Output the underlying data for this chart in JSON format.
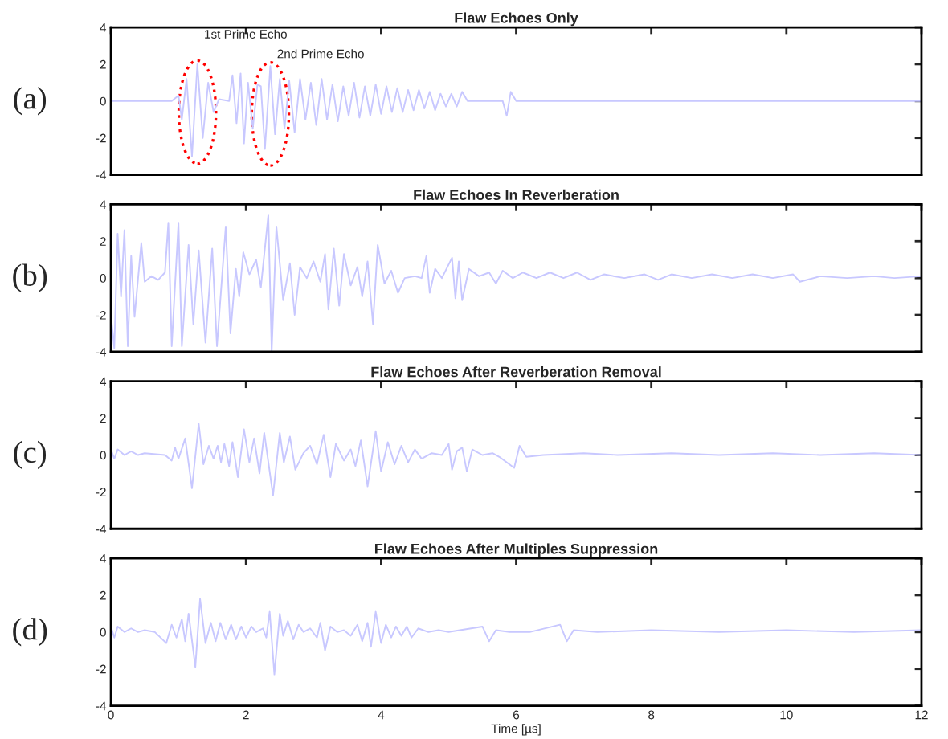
{
  "chart_data": [
    {
      "type": "line",
      "title": "Flaw Echoes Only",
      "annotations": [
        "(a)",
        {
          "text": "1st Prime Echo",
          "x": 1.28,
          "y": 2.0
        },
        {
          "text": "2nd Prime Echo",
          "x": 2.36,
          "y": 1.9
        }
      ],
      "xlim": [
        0,
        12
      ],
      "xticks": [
        0,
        2,
        4,
        6,
        8,
        10,
        12
      ],
      "ylim": [
        -4,
        4
      ],
      "yticks": [
        -4,
        -2,
        0,
        2,
        4
      ],
      "tick_labels": "y",
      "grid": false,
      "legend": false,
      "x": [
        0,
        0.9,
        1.0,
        1.05,
        1.12,
        1.2,
        1.28,
        1.36,
        1.44,
        1.52,
        1.6,
        1.75,
        1.8,
        1.86,
        1.92,
        1.97,
        2.03,
        2.1,
        2.17,
        2.22,
        2.28,
        2.36,
        2.43,
        2.5,
        2.57,
        2.64,
        2.72,
        2.8,
        2.88,
        2.96,
        3.04,
        3.12,
        3.2,
        3.28,
        3.36,
        3.44,
        3.52,
        3.6,
        3.68,
        3.76,
        3.84,
        3.92,
        4.0,
        4.08,
        4.16,
        4.24,
        4.32,
        4.4,
        4.48,
        4.56,
        4.64,
        4.72,
        4.8,
        4.88,
        4.96,
        5.04,
        5.12,
        5.2,
        5.28,
        5.8,
        5.86,
        5.92,
        6.0,
        12
      ],
      "series": [
        {
          "color": "#c8c8ff",
          "values": [
            0,
            0,
            0.3,
            -1.0,
            1.2,
            -3.0,
            2.0,
            -2.0,
            1.0,
            -0.6,
            0.1,
            0.0,
            1.4,
            -1.2,
            1.5,
            -2.3,
            1.0,
            -1.5,
            0.9,
            0.8,
            -2.6,
            1.9,
            -1.8,
            1.2,
            -1.5,
            1.1,
            -1.7,
            1.2,
            -1.0,
            1.0,
            -1.3,
            1.2,
            -1.0,
            0.9,
            -1.1,
            0.8,
            -0.8,
            1.0,
            -0.9,
            0.8,
            -0.8,
            0.9,
            -0.7,
            0.8,
            -0.6,
            0.7,
            -0.6,
            0.6,
            -0.5,
            0.6,
            -0.4,
            0.5,
            -0.5,
            0.4,
            -0.3,
            0.4,
            -0.3,
            0.5,
            0.0,
            0.0,
            -0.8,
            0.5,
            0.0,
            0
          ]
        }
      ]
    },
    {
      "type": "line",
      "title": "Flaw Echoes In Reverberation",
      "annotations": [
        "(b)"
      ],
      "xlim": [
        0,
        12
      ],
      "xticks": [
        0,
        2,
        4,
        6,
        8,
        10,
        12
      ],
      "ylim": [
        -4,
        4
      ],
      "yticks": [
        -4,
        -2,
        0,
        2,
        4
      ],
      "tick_labels": "y",
      "grid": false,
      "legend": false,
      "x": [
        0,
        0.05,
        0.1,
        0.15,
        0.2,
        0.25,
        0.3,
        0.35,
        0.45,
        0.5,
        0.6,
        0.7,
        0.8,
        0.85,
        0.9,
        1.0,
        1.05,
        1.15,
        1.22,
        1.3,
        1.4,
        1.5,
        1.57,
        1.7,
        1.77,
        1.85,
        1.9,
        1.96,
        2.05,
        2.15,
        2.22,
        2.33,
        2.38,
        2.45,
        2.55,
        2.65,
        2.72,
        2.8,
        2.9,
        3.0,
        3.1,
        3.17,
        3.22,
        3.3,
        3.38,
        3.45,
        3.55,
        3.65,
        3.72,
        3.8,
        3.88,
        3.95,
        4.05,
        4.15,
        4.25,
        4.35,
        4.5,
        4.6,
        4.67,
        4.72,
        4.8,
        4.9,
        5.05,
        5.1,
        5.15,
        5.2,
        5.3,
        5.45,
        5.6,
        5.7,
        5.8,
        5.95,
        6.1,
        6.3,
        6.5,
        6.7,
        6.9,
        7.1,
        7.3,
        7.6,
        7.9,
        8.1,
        8.3,
        8.6,
        8.9,
        9.2,
        9.5,
        9.8,
        10.1,
        10.2,
        10.5,
        10.9,
        11.3,
        11.6,
        12
      ],
      "series": [
        {
          "color": "#c8c8ff",
          "values": [
            -2.0,
            -3.8,
            2.4,
            -1.0,
            2.6,
            -3.7,
            1.2,
            -2.1,
            1.9,
            -0.2,
            0.1,
            -0.1,
            0.3,
            3.0,
            -3.7,
            3.0,
            -3.7,
            1.8,
            -2.5,
            1.5,
            -3.5,
            1.6,
            -3.7,
            2.8,
            -3.0,
            0.5,
            -1.0,
            1.4,
            0.2,
            1.0,
            -0.5,
            3.4,
            -4.0,
            2.8,
            -1.2,
            0.8,
            -2.0,
            0.6,
            0.0,
            0.9,
            -0.2,
            1.3,
            -1.7,
            1.6,
            -1.5,
            1.3,
            -0.4,
            0.6,
            -1.0,
            0.9,
            -2.5,
            1.8,
            -0.3,
            0.4,
            -0.8,
            0.0,
            0.1,
            0.0,
            1.2,
            -0.8,
            0.5,
            0.0,
            1.1,
            -1.1,
            0.9,
            -1.2,
            0.5,
            0.1,
            0.3,
            -0.3,
            0.4,
            0.0,
            0.3,
            0.0,
            0.3,
            0.0,
            0.3,
            -0.1,
            0.2,
            0.0,
            0.2,
            -0.1,
            0.2,
            0.0,
            0.2,
            0.0,
            0.2,
            0.0,
            0.2,
            -0.2,
            0.1,
            0.0,
            0.1,
            0.0,
            0.1
          ]
        }
      ]
    },
    {
      "type": "line",
      "title": "Flaw Echoes After Reverberation Removal",
      "annotations": [
        "(c)"
      ],
      "xlim": [
        0,
        12
      ],
      "xticks": [
        0,
        2,
        4,
        6,
        8,
        10,
        12
      ],
      "ylim": [
        -4,
        4
      ],
      "yticks": [
        -4,
        -2,
        0,
        2,
        4
      ],
      "tick_labels": "y",
      "grid": false,
      "legend": false,
      "x": [
        0,
        0.05,
        0.1,
        0.2,
        0.3,
        0.4,
        0.5,
        0.8,
        0.9,
        0.95,
        1.0,
        1.1,
        1.2,
        1.3,
        1.37,
        1.45,
        1.52,
        1.58,
        1.63,
        1.68,
        1.75,
        1.8,
        1.88,
        1.97,
        2.05,
        2.12,
        2.2,
        2.27,
        2.4,
        2.5,
        2.56,
        2.65,
        2.73,
        2.85,
        2.95,
        3.05,
        3.15,
        3.25,
        3.33,
        3.45,
        3.55,
        3.62,
        3.7,
        3.8,
        3.92,
        4.0,
        4.1,
        4.2,
        4.3,
        4.4,
        4.5,
        4.6,
        4.75,
        4.9,
        5.0,
        5.05,
        5.12,
        5.2,
        5.27,
        5.35,
        5.5,
        5.65,
        5.75,
        5.97,
        6.05,
        6.15,
        6.4,
        7.0,
        7.5,
        8.3,
        9.0,
        9.8,
        10.5,
        11.3,
        12
      ],
      "series": [
        {
          "color": "#c8c8ff",
          "values": [
            0.3,
            -0.2,
            0.3,
            0.0,
            0.2,
            0.0,
            0.1,
            0.0,
            -0.3,
            0.4,
            -0.2,
            0.9,
            -1.8,
            1.7,
            -0.5,
            0.5,
            -0.2,
            0.5,
            -0.4,
            0.6,
            -0.6,
            0.7,
            -1.2,
            1.4,
            -0.4,
            0.9,
            -1.0,
            1.2,
            -2.2,
            1.2,
            -0.4,
            1.0,
            -0.8,
            0.1,
            0.5,
            -0.5,
            1.1,
            -1.2,
            0.6,
            -0.3,
            0.3,
            -0.6,
            0.8,
            -1.7,
            1.3,
            -0.9,
            0.7,
            -0.5,
            0.5,
            -0.4,
            0.3,
            -0.2,
            0.1,
            0.0,
            0.6,
            -0.8,
            0.2,
            0.4,
            -0.9,
            0.3,
            0.0,
            0.1,
            -0.1,
            -0.7,
            0.5,
            -0.1,
            0.0,
            0.1,
            0.0,
            0.1,
            0.0,
            0.1,
            0.0,
            0.1,
            0.0
          ]
        }
      ]
    },
    {
      "type": "line",
      "title": "Flaw Echoes After Multiples Suppression",
      "xlabel": "Time [µs]",
      "annotations": [
        "(d)"
      ],
      "xlim": [
        0,
        12
      ],
      "xticks": [
        0,
        2,
        4,
        6,
        8,
        10,
        12
      ],
      "ylim": [
        -4,
        4
      ],
      "yticks": [
        -4,
        -2,
        0,
        2,
        4
      ],
      "grid": false,
      "legend": false,
      "x": [
        0,
        0.05,
        0.1,
        0.2,
        0.3,
        0.4,
        0.5,
        0.65,
        0.82,
        0.9,
        0.97,
        1.05,
        1.1,
        1.15,
        1.25,
        1.32,
        1.4,
        1.48,
        1.55,
        1.62,
        1.7,
        1.78,
        1.85,
        1.93,
        2.0,
        2.08,
        2.15,
        2.25,
        2.3,
        2.35,
        2.42,
        2.5,
        2.55,
        2.62,
        2.7,
        2.78,
        2.85,
        2.95,
        3.05,
        3.1,
        3.17,
        3.25,
        3.35,
        3.45,
        3.55,
        3.65,
        3.72,
        3.8,
        3.85,
        3.92,
        4.0,
        4.07,
        4.15,
        4.22,
        4.3,
        4.38,
        4.45,
        4.55,
        4.7,
        4.85,
        5.0,
        5.5,
        5.6,
        5.7,
        5.9,
        6.2,
        6.65,
        6.75,
        6.85,
        7.2,
        8.0,
        9.0,
        10.0,
        11.0,
        12
      ],
      "series": [
        {
          "color": "#c8c8ff",
          "values": [
            0.3,
            -0.3,
            0.3,
            0.0,
            0.2,
            0.0,
            0.1,
            0.0,
            -0.6,
            0.4,
            -0.3,
            0.7,
            -0.5,
            1.0,
            -1.9,
            1.8,
            -0.6,
            0.5,
            -0.5,
            0.5,
            -0.4,
            0.4,
            -0.4,
            0.3,
            -0.3,
            0.3,
            0.0,
            0.2,
            -0.3,
            1.1,
            -2.3,
            1.0,
            -0.2,
            0.6,
            -0.4,
            0.4,
            0.0,
            0.2,
            -0.3,
            0.5,
            -1.0,
            0.3,
            0.0,
            0.1,
            -0.2,
            0.4,
            -0.5,
            0.5,
            -0.8,
            1.1,
            -0.6,
            0.4,
            -0.3,
            0.3,
            -0.2,
            0.3,
            -0.3,
            0.2,
            0.0,
            0.1,
            0.0,
            0.3,
            -0.5,
            0.1,
            0.0,
            0.0,
            0.4,
            -0.5,
            0.1,
            0.0,
            0.1,
            0.0,
            0.1,
            0.0,
            0.1
          ]
        }
      ]
    }
  ]
}
